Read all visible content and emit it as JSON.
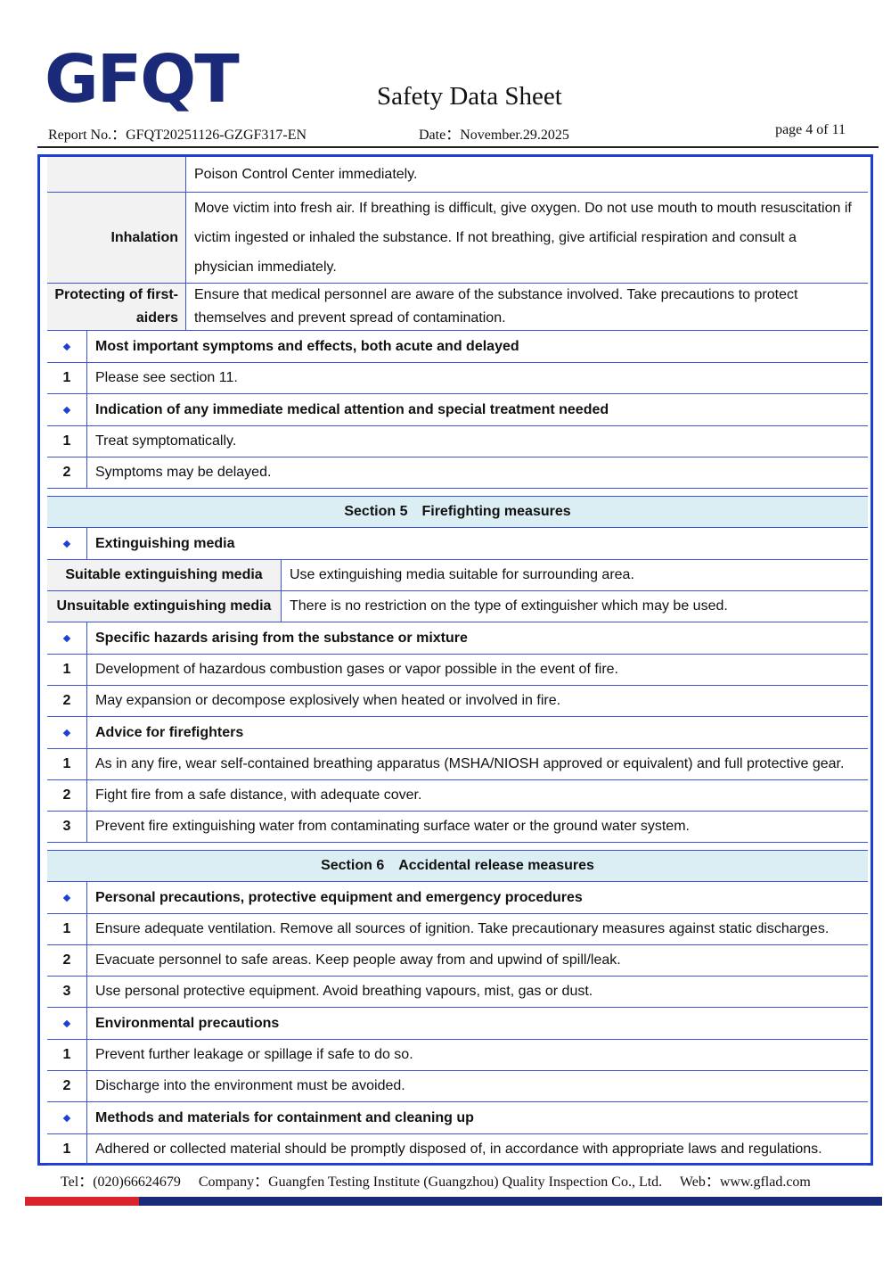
{
  "header": {
    "logo": "GFQT",
    "title": "Safety Data Sheet",
    "report_no_label": "Report No.：",
    "report_no": "GFQT20251126-GZGF317-EN",
    "date_label": "Date：",
    "date": "November.29.2025",
    "page": "page 4 of 11"
  },
  "table": {
    "rows": [
      {
        "text": "Poison Control Center immediately."
      },
      {
        "label": "Inhalation",
        "text": "Move victim into fresh air. If breathing is difficult, give oxygen. Do not use mouth to mouth resuscitation if victim ingested or inhaled the substance. If not breathing, give artificial respiration and consult a physician immediately."
      },
      {
        "label": "Protecting of first-aiders",
        "text": "Ensure that medical personnel are aware of the substance involved. Take precautions to protect themselves and prevent spread of contamination."
      },
      {
        "heading": "Most important symptoms and effects, both acute and delayed"
      },
      {
        "number": 1,
        "text": "Please see section 11."
      },
      {
        "heading": "Indication of any immediate medical attention and special treatment needed"
      },
      {
        "number": 1,
        "text": "Treat symptomatically."
      },
      {
        "number": 2,
        "text": "Symptoms may be delayed."
      },
      {
        "section": "Section 5",
        "title": "Firefighting measures"
      },
      {
        "heading": "Extinguishing media"
      },
      {
        "label": "Suitable extinguishing media",
        "text": "Use extinguishing media suitable for surrounding area."
      },
      {
        "label": "Unsuitable extinguishing media",
        "text": "There is no restriction on the type of extinguisher which may be used."
      },
      {
        "heading": "Specific hazards arising from the substance or mixture"
      },
      {
        "number": 1,
        "text": "Development of hazardous combustion gases or vapor possible in the event of fire."
      },
      {
        "number": 2,
        "text": "May expansion or decompose explosively when heated or involved in fire."
      },
      {
        "heading": "Advice for firefighters"
      },
      {
        "number": 1,
        "text": "As in any fire, wear self-contained breathing apparatus (MSHA/NIOSH approved or equivalent) and full protective gear."
      },
      {
        "number": 2,
        "text": "Fight fire from a safe distance, with adequate cover."
      },
      {
        "number": 3,
        "text": "Prevent fire extinguishing water from contaminating surface water or the ground water system."
      },
      {
        "section": "Section 6",
        "title": "Accidental release measures"
      },
      {
        "heading": "Personal precautions, protective equipment and emergency procedures"
      },
      {
        "number": 1,
        "text": "Ensure adequate ventilation. Remove all sources of ignition. Take precautionary measures against static discharges."
      },
      {
        "number": 2,
        "text": "Evacuate personnel to safe areas. Keep people away from and upwind of spill/leak."
      },
      {
        "number": 3,
        "text": "Use personal protective equipment. Avoid breathing vapours, mist, gas or dust."
      },
      {
        "heading": "Environmental precautions"
      },
      {
        "number": 1,
        "text": "Prevent further leakage or spillage if safe to do so."
      },
      {
        "number": 2,
        "text": "Discharge into the environment must be avoided."
      },
      {
        "heading": "Methods and materials for containment and cleaning up"
      },
      {
        "number": 1,
        "text": "Adhered or collected material should be promptly disposed of, in accordance with appropriate laws and regulations."
      }
    ]
  },
  "footer": {
    "tel_label": "Tel：",
    "tel": "(020)66624679",
    "company_label": "Company：",
    "company": "Guangfen Testing Institute (Guangzhou) Quality Inspection Co., Ltd.",
    "web_label": "Web：",
    "web": "www.gflad.com"
  }
}
